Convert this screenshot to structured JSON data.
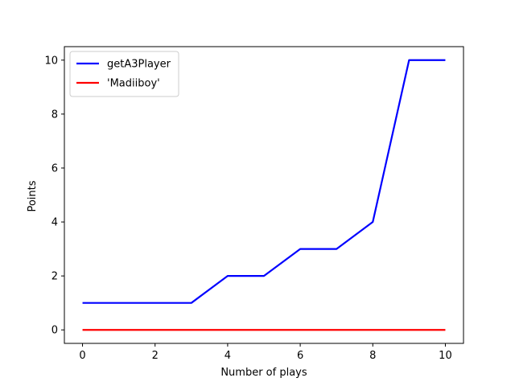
{
  "chart_data": {
    "type": "line",
    "title": "",
    "xlabel": "Number of plays",
    "ylabel": "Points",
    "xlim": [
      -0.5,
      10.5
    ],
    "ylim": [
      -0.5,
      10.5
    ],
    "xticks": [
      0,
      2,
      4,
      6,
      8,
      10
    ],
    "yticks": [
      0,
      2,
      4,
      6,
      8,
      10
    ],
    "grid": false,
    "legend_position": "top-left",
    "series": [
      {
        "name": "getA3Player",
        "color": "#0000ff",
        "x": [
          0,
          1,
          2,
          3,
          4,
          5,
          6,
          7,
          8,
          9,
          10
        ],
        "y": [
          1,
          1,
          1,
          1,
          2,
          2,
          3,
          3,
          4,
          10,
          10
        ]
      },
      {
        "name": "'Madiiboy'",
        "color": "#ff0000",
        "x": [
          0,
          1,
          2,
          3,
          4,
          5,
          6,
          7,
          8,
          9,
          10
        ],
        "y": [
          0,
          0,
          0,
          0,
          0,
          0,
          0,
          0,
          0,
          0,
          0
        ]
      }
    ]
  }
}
